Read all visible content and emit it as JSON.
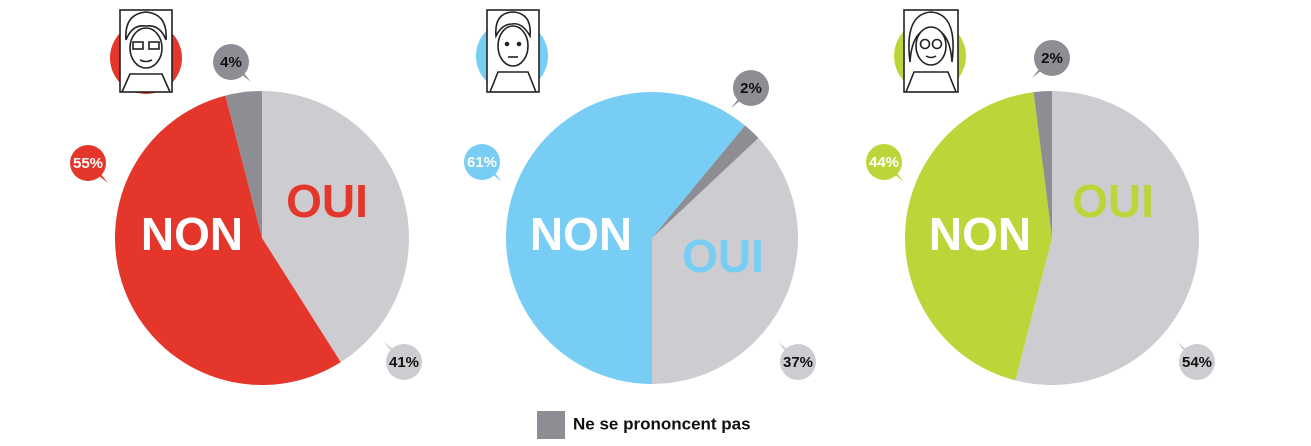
{
  "chart_data": [
    {
      "type": "pie",
      "categories": [
        "OUI",
        "NON",
        null
      ],
      "values": [
        41,
        55,
        4
      ],
      "value_labels": [
        "41%",
        "55%",
        "4%"
      ],
      "colors": [
        "#cdcdd1",
        "#e4362a",
        "#8d8d93"
      ]
    },
    {
      "type": "pie",
      "categories": [
        "OUI",
        "NON",
        null
      ],
      "values": [
        37,
        61,
        2
      ],
      "value_labels": [
        "37%",
        "61%",
        "2%"
      ],
      "colors": [
        "#cdcdd1",
        "#77cdf3",
        "#8d8d93"
      ]
    },
    {
      "type": "pie",
      "categories": [
        "OUI",
        "NON",
        null
      ],
      "values": [
        54,
        44,
        2
      ],
      "value_labels": [
        "54%",
        "44%",
        "2%"
      ],
      "colors": [
        "#cdcdd1",
        "#bcd63a",
        "#8d8d93"
      ]
    }
  ],
  "legend": {
    "label": "Ne se prononcent pas",
    "color": "#8d8d93"
  }
}
